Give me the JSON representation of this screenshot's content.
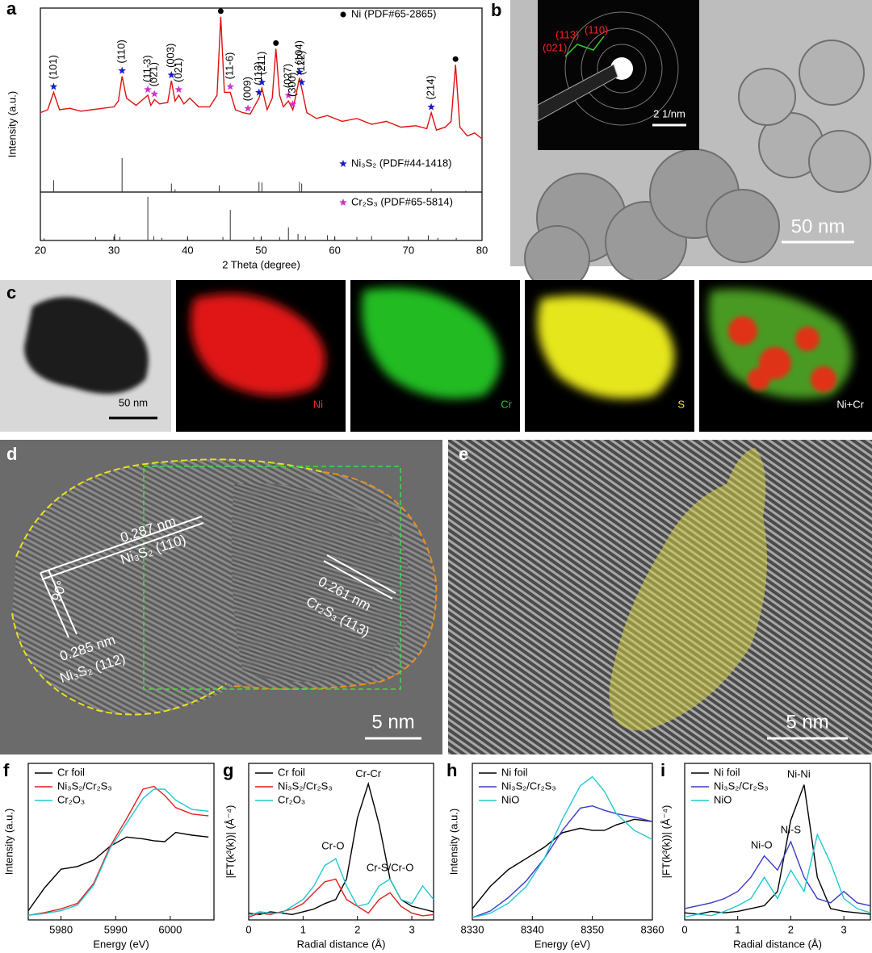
{
  "images": {
    "b": {
      "label": "b",
      "scale_bar": "50 nm",
      "inset_scale": "2 1/nm",
      "inset_labels": [
        "(113)",
        "(110)",
        "(021)"
      ]
    },
    "c": {
      "label": "c",
      "scale_bar": "50 nm",
      "maps": [
        {
          "label": "Ni",
          "color": "#ff2a2a"
        },
        {
          "label": "Cr",
          "color": "#22cc22"
        },
        {
          "label": "S",
          "color": "#f0f020"
        },
        {
          "label": "Ni+Cr",
          "color": "#ffffff"
        }
      ]
    },
    "d": {
      "label": "d",
      "scale_bar": "5 nm",
      "annotations": [
        "0.287 nm",
        "Ni₃S₂ (110)",
        "90°",
        "0.285 nm",
        "Ni₃S₂ (112)",
        "0.261 nm",
        "Cr₂S₃ (113)"
      ]
    },
    "e": {
      "label": "e",
      "scale_bar": "5 nm"
    }
  },
  "chart_data": [
    {
      "type": "line",
      "label": "a",
      "xlabel": "2 Theta (degree)",
      "ylabel": "Intensity (a.u.)",
      "xlim": [
        20,
        80
      ],
      "xticks": [
        20,
        30,
        40,
        50,
        60,
        70,
        80
      ],
      "ylim": [
        0,
        100
      ],
      "x": [
        20,
        21,
        21.8,
        22.6,
        24,
        25.5,
        27,
        28.5,
        30,
        30.6,
        31.1,
        31.7,
        33,
        34.6,
        35,
        35.5,
        36.2,
        37.3,
        37.8,
        38.3,
        38.8,
        39.5,
        40.3,
        41.5,
        43,
        44,
        44.5,
        45,
        45.8,
        46.5,
        47.5,
        48.5,
        49.7,
        50.1,
        50.8,
        51.5,
        52,
        52.5,
        53,
        53.7,
        54.3,
        55.2,
        55.5,
        56.2,
        57.5,
        59,
        61,
        63,
        65,
        67,
        69,
        71,
        72.5,
        73.1,
        73.8,
        75,
        75.8,
        76.4,
        77,
        78,
        79,
        80
      ],
      "series": [
        {
          "color": "#e01010",
          "values": [
            28,
            30,
            42,
            30,
            31,
            29,
            30,
            31,
            32,
            36,
            53,
            38,
            33,
            40,
            33,
            37,
            34,
            35,
            50,
            36,
            40,
            34,
            38,
            32,
            32,
            40,
            94,
            42,
            42,
            30,
            28,
            27,
            38,
            45,
            30,
            38,
            72,
            40,
            32,
            36,
            30,
            52,
            45,
            28,
            24,
            26,
            22,
            24,
            20,
            22,
            18,
            19,
            17,
            28,
            16,
            18,
            22,
            61,
            18,
            12,
            14,
            10
          ]
        }
      ],
      "phases": [
        {
          "name": "Ni (PDF#65-2865)",
          "color": "#000000",
          "marker": "dot",
          "peaks": [
            {
              "x": 44.5
            },
            {
              "x": 52
            },
            {
              "x": 76.4
            }
          ]
        },
        {
          "name": "Ni₃S₂ (PDF#44-1418)",
          "color": "#1a1acc",
          "marker": "star",
          "peaks": [
            {
              "x": 21.8,
              "label": "(101)"
            },
            {
              "x": 31.1,
              "label": "(110)"
            },
            {
              "x": 37.8,
              "label": "(003)"
            },
            {
              "x": 49.7,
              "label": "(113)"
            },
            {
              "x": 50.1,
              "label": "(211)"
            },
            {
              "x": 55.2,
              "label": "(104)"
            },
            {
              "x": 55.5,
              "label": "(122)"
            },
            {
              "x": 73.1,
              "label": "(214)"
            }
          ],
          "sticks": {
            "x": [
              21.8,
              31.1,
              37.8,
              38.3,
              44.3,
              49.7,
              50.1,
              55.2,
              55.5,
              73.1,
              77.8
            ],
            "values": [
              35,
              100,
              25,
              8,
              20,
              30,
              28,
              30,
              25,
              10,
              4
            ]
          }
        },
        {
          "name": "Cr₂S₃ (PDF#65-5814)",
          "color": "#cc33cc",
          "marker": "star",
          "peaks": [
            {
              "x": 34.6,
              "label": "(11-3)"
            },
            {
              "x": 35.5,
              "label": "(021)"
            },
            {
              "x": 38.8,
              "label": "(021)"
            },
            {
              "x": 45.8,
              "label": "(11-6)"
            },
            {
              "x": 48.2,
              "label": "(009)"
            },
            {
              "x": 53.7,
              "label": "(027)"
            },
            {
              "x": 54.3,
              "label": "(300)"
            }
          ],
          "sticks": {
            "x": [
              20.5,
              27.5,
              30.1,
              30.8,
              34.6,
              35.4,
              36.5,
              44.8,
              45.8,
              49,
              52.5,
              53.7,
              55,
              56,
              59,
              63,
              65,
              72.7,
              74,
              76.5
            ],
            "values": [
              5,
              8,
              15,
              8,
              100,
              10,
              6,
              8,
              70,
              8,
              8,
              30,
              15,
              10,
              12,
              8,
              10,
              12,
              6,
              6
            ]
          }
        }
      ]
    },
    {
      "type": "line",
      "label": "f",
      "xlabel": "Energy (eV)",
      "ylabel": "Intensity (a.u.)",
      "xlim": [
        5974,
        6008
      ],
      "xticks": [
        5980,
        5990,
        6000
      ],
      "ylim": [
        0,
        1.7
      ],
      "x": [
        5974,
        5977,
        5980,
        5983,
        5986,
        5989,
        5992,
        5995,
        5997,
        5999,
        6001,
        6004,
        6007
      ],
      "series": [
        {
          "name": "Cr foil",
          "color": "#000000",
          "values": [
            0.1,
            0.35,
            0.55,
            0.58,
            0.65,
            0.8,
            0.9,
            0.88,
            0.86,
            0.85,
            0.95,
            0.92,
            0.9
          ]
        },
        {
          "name": "Ni₃S₂/Cr₂S₃",
          "color": "#e02020",
          "values": [
            0.05,
            0.08,
            0.12,
            0.18,
            0.4,
            0.8,
            1.1,
            1.42,
            1.45,
            1.35,
            1.22,
            1.15,
            1.13
          ]
        },
        {
          "name": "Cr₂O₃",
          "color": "#20c8d0",
          "values": [
            0.05,
            0.07,
            0.1,
            0.16,
            0.38,
            0.78,
            1.05,
            1.32,
            1.42,
            1.42,
            1.3,
            1.2,
            1.18
          ]
        }
      ]
    },
    {
      "type": "line",
      "label": "g",
      "xlabel": "Radial distance (Å)",
      "ylabel": "|FT(k³(k))| (Å⁻⁴)",
      "xlim": [
        0,
        3.4
      ],
      "xticks": [
        0,
        1,
        2,
        3
      ],
      "ylim": [
        0,
        1.15
      ],
      "x": [
        0,
        0.2,
        0.4,
        0.6,
        0.8,
        1.0,
        1.2,
        1.4,
        1.6,
        1.8,
        2.0,
        2.2,
        2.4,
        2.6,
        2.8,
        3.0,
        3.2,
        3.4
      ],
      "series": [
        {
          "name": "Cr foil",
          "color": "#000000",
          "values": [
            0.05,
            0.04,
            0.06,
            0.05,
            0.04,
            0.06,
            0.08,
            0.12,
            0.15,
            0.3,
            0.75,
            1.0,
            0.7,
            0.3,
            0.15,
            0.1,
            0.08,
            0.06
          ]
        },
        {
          "name": "Ni₃S₂/Cr₂S₃",
          "color": "#e02020",
          "values": [
            0.02,
            0.05,
            0.04,
            0.06,
            0.08,
            0.12,
            0.2,
            0.28,
            0.3,
            0.15,
            0.1,
            0.05,
            0.15,
            0.2,
            0.1,
            0.05,
            0.03,
            0.04
          ]
        },
        {
          "name": "Cr₂O₃",
          "color": "#20c8d0",
          "values": [
            0.03,
            0.06,
            0.05,
            0.05,
            0.1,
            0.15,
            0.25,
            0.4,
            0.45,
            0.25,
            0.1,
            0.12,
            0.25,
            0.3,
            0.15,
            0.12,
            0.25,
            0.15
          ]
        }
      ],
      "annotations": [
        {
          "text": "Cr-Cr",
          "x": 2.2,
          "y": 1.07
        },
        {
          "text": "Cr-O",
          "x": 1.55,
          "y": 0.54
        },
        {
          "text": "Cr-S/Cr-O",
          "x": 2.6,
          "y": 0.38
        }
      ]
    },
    {
      "type": "line",
      "label": "h",
      "xlabel": "Energy (eV)",
      "ylabel": "Intensity (a.u.)",
      "xlim": [
        8330,
        8360
      ],
      "xticks": [
        8330,
        8340,
        8350,
        8360
      ],
      "ylim": [
        0,
        1.4
      ],
      "x": [
        8330,
        8333,
        8336,
        8339,
        8342,
        8345,
        8348,
        8350,
        8352,
        8354,
        8357,
        8360
      ],
      "series": [
        {
          "name": "Ni foil",
          "color": "#000000",
          "values": [
            0.1,
            0.3,
            0.45,
            0.55,
            0.65,
            0.78,
            0.82,
            0.8,
            0.8,
            0.85,
            0.9,
            0.88
          ]
        },
        {
          "name": "Ni₃S₂/Cr₂S₃",
          "color": "#3a3ac8",
          "values": [
            0.02,
            0.08,
            0.2,
            0.35,
            0.55,
            0.8,
            1.0,
            1.02,
            0.98,
            0.95,
            0.92,
            0.88
          ]
        },
        {
          "name": "NiO",
          "color": "#20c8d0",
          "values": [
            0.02,
            0.06,
            0.15,
            0.3,
            0.55,
            0.9,
            1.2,
            1.28,
            1.15,
            0.95,
            0.8,
            0.72
          ]
        }
      ]
    },
    {
      "type": "line",
      "label": "i",
      "xlabel": "Radial distance (Å)",
      "ylabel": "|FT(k³(k))| (Å⁻⁴)",
      "xlim": [
        0,
        3.5
      ],
      "xticks": [
        0,
        1,
        2,
        3
      ],
      "ylim": [
        0,
        1.1
      ],
      "x": [
        0,
        0.25,
        0.5,
        0.75,
        1,
        1.25,
        1.5,
        1.75,
        2,
        2.25,
        2.5,
        2.75,
        3,
        3.25,
        3.5
      ],
      "series": [
        {
          "name": "Ni foil",
          "color": "#000000",
          "values": [
            0.05,
            0.04,
            0.06,
            0.05,
            0.06,
            0.08,
            0.1,
            0.2,
            0.7,
            0.95,
            0.3,
            0.08,
            0.06,
            0.05,
            0.04
          ]
        },
        {
          "name": "Ni₃S₂/Cr₂S₃",
          "color": "#3a3ac8",
          "values": [
            0.08,
            0.1,
            0.12,
            0.15,
            0.2,
            0.3,
            0.45,
            0.35,
            0.55,
            0.3,
            0.15,
            0.12,
            0.2,
            0.12,
            0.1
          ]
        },
        {
          "name": "NiO",
          "color": "#20c8d0",
          "values": [
            0.02,
            0.04,
            0.03,
            0.06,
            0.1,
            0.15,
            0.3,
            0.15,
            0.35,
            0.2,
            0.6,
            0.4,
            0.15,
            0.08,
            0.05
          ]
        }
      ],
      "annotations": [
        {
          "text": "Ni-Ni",
          "x": 2.15,
          "y": 1.02
        },
        {
          "text": "Ni-S",
          "x": 2.0,
          "y": 0.63
        },
        {
          "text": "Ni-O",
          "x": 1.45,
          "y": 0.52
        }
      ]
    }
  ]
}
